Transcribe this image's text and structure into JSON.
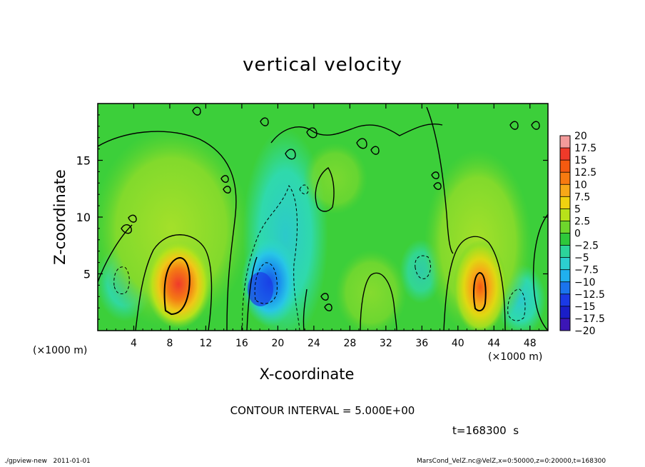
{
  "chart_data": {
    "type": "heatmap",
    "title": "vertical velocity",
    "xlabel": "X-coordinate",
    "ylabel": "Z-coordinate",
    "x_unit_label": "(×1000 m)",
    "z_unit_label": "(×1000 m)",
    "xlim": [
      0,
      50
    ],
    "ylim": [
      0,
      20
    ],
    "x_ticks": [
      4,
      8,
      12,
      16,
      20,
      24,
      28,
      32,
      36,
      40,
      44,
      48
    ],
    "x_tick_labels": [
      "4",
      "8",
      "12",
      "16",
      "20",
      "24",
      "28",
      "32",
      "36",
      "40",
      "44",
      "48"
    ],
    "y_ticks": [
      5,
      10,
      15
    ],
    "y_tick_labels": [
      "5",
      "10",
      "15"
    ],
    "colorbar": {
      "levels": [
        20,
        17.5,
        15,
        12.5,
        10,
        7.5,
        5,
        2.5,
        0,
        -2.5,
        -5,
        -7.5,
        -10,
        -12.5,
        -15,
        -17.5,
        -20
      ],
      "labels": [
        "20",
        "17.5",
        "15",
        "12.5",
        "10",
        "7.5",
        "5",
        "2.5",
        "0",
        "−2.5",
        "−5",
        "−7.5",
        "−10",
        "−12.5",
        "−15",
        "−17.5",
        "−20"
      ],
      "colors": [
        "#f39a9a",
        "#ef3a2a",
        "#f45a10",
        "#f77a10",
        "#f7a818",
        "#f0d210",
        "#b8e21a",
        "#6ed62c",
        "#2ec83a",
        "#2cd49a",
        "#2ccfcf",
        "#20b0ee",
        "#1a74ee",
        "#1a3ae6",
        "#1a1ec8",
        "#3c16b6",
        "#7012b6"
      ]
    },
    "features": [
      {
        "kind": "updraft",
        "x": 9,
        "z": 4,
        "peak": 12.5
      },
      {
        "kind": "updraft",
        "x": 42.5,
        "z": 3.5,
        "peak": 11
      },
      {
        "kind": "downdraft",
        "x": 18.5,
        "z": 4,
        "peak": -10
      },
      {
        "kind": "downdraft",
        "x": 3,
        "z": 4.5,
        "peak": -2.5
      },
      {
        "kind": "downdraft",
        "x": 46,
        "z": 2.5,
        "peak": -5
      }
    ],
    "contour_interval_text": "CONTOUR INTERVAL = 5.000E+00",
    "time_text": "t=168300  s"
  },
  "footer": {
    "left": "./gpview-new   2011-01-01",
    "right": "MarsCond_VelZ.nc@VelZ,x=0:50000,z=0:20000,t=168300"
  },
  "colors": {
    "background_green": "#3ccf3a",
    "light_green": "#8ade2e",
    "cyan": "#2ce0c0"
  }
}
